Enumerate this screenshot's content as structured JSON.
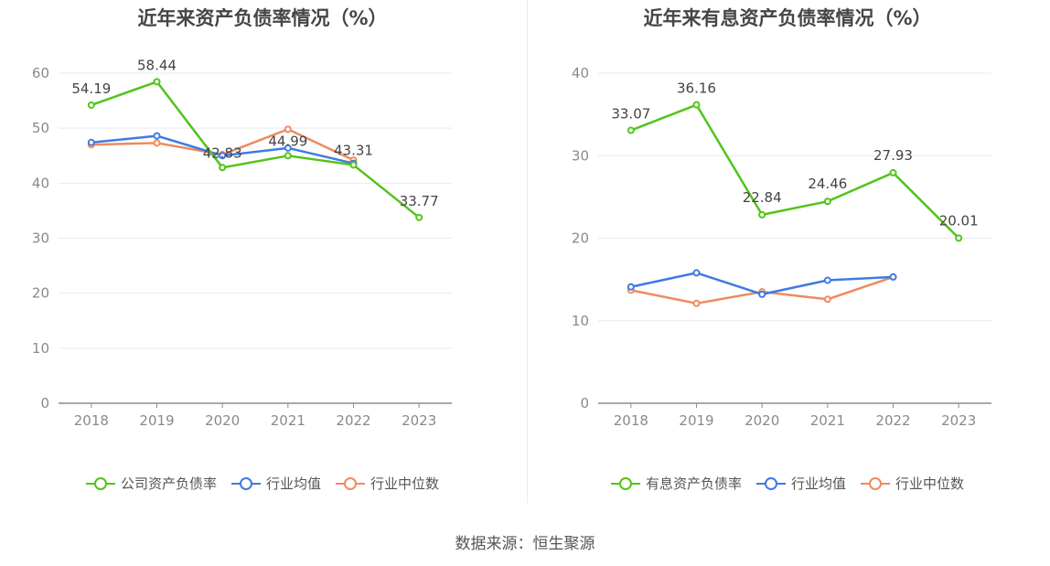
{
  "source_text": "数据来源：恒生聚源",
  "chart_data": [
    {
      "type": "line",
      "title": "近年来资产负债率情况（%）",
      "categories": [
        "2018",
        "2019",
        "2020",
        "2021",
        "2022",
        "2023"
      ],
      "ylim": [
        0,
        60
      ],
      "yticks": [
        0,
        10,
        20,
        30,
        40,
        50,
        60
      ],
      "grid": true,
      "legend_position": "bottom",
      "series": [
        {
          "name": "公司资产负债率",
          "color": "#52c41a",
          "values": [
            54.19,
            58.44,
            42.83,
            44.99,
            43.31,
            33.77
          ],
          "labels": [
            "54.19",
            "58.44",
            "42.83",
            "44.99",
            "43.31",
            "33.77"
          ]
        },
        {
          "name": "行业均值",
          "color": "#3f7be0",
          "values": [
            47.4,
            48.6,
            45.0,
            46.4,
            43.6,
            null
          ]
        },
        {
          "name": "行业中位数",
          "color": "#f08a5d",
          "values": [
            47.0,
            47.3,
            45.2,
            49.8,
            44.2,
            null
          ]
        }
      ]
    },
    {
      "type": "line",
      "title": "近年来有息资产负债率情况（%）",
      "categories": [
        "2018",
        "2019",
        "2020",
        "2021",
        "2022",
        "2023"
      ],
      "ylim": [
        0,
        40
      ],
      "yticks": [
        0,
        10,
        20,
        30,
        40
      ],
      "grid": true,
      "legend_position": "bottom",
      "series": [
        {
          "name": "有息资产负债率",
          "color": "#52c41a",
          "values": [
            33.07,
            36.16,
            22.84,
            24.46,
            27.93,
            20.01
          ],
          "labels": [
            "33.07",
            "36.16",
            "22.84",
            "24.46",
            "27.93",
            "20.01"
          ]
        },
        {
          "name": "行业均值",
          "color": "#3f7be0",
          "values": [
            14.1,
            15.8,
            13.2,
            14.9,
            15.3,
            null
          ]
        },
        {
          "name": "行业中位数",
          "color": "#f08a5d",
          "values": [
            13.7,
            12.1,
            13.5,
            12.6,
            15.3,
            null
          ]
        }
      ]
    }
  ]
}
